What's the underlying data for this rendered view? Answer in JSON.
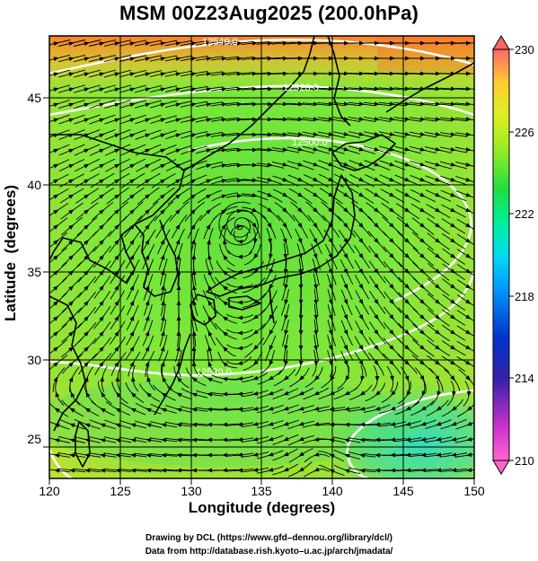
{
  "title": "MSM 00Z23Aug2025 (200.0hPa)",
  "axes": {
    "xlabel": "Longitude (degrees)",
    "ylabel": "Latitude  (degrees)",
    "xticks": [
      "120",
      "125",
      "130",
      "135",
      "140",
      "145",
      "150"
    ],
    "yticks": [
      "25",
      "30",
      "35",
      "40",
      "45"
    ],
    "xlim": [
      120,
      150
    ],
    "ylim": [
      22.4,
      47.6
    ]
  },
  "colorbar": {
    "ticks": [
      "230",
      "226",
      "222",
      "218",
      "214",
      "210"
    ],
    "range": [
      210,
      230
    ],
    "colors": [
      "#ff66cc",
      "#cc33cc",
      "#6633cc",
      "#0033cc",
      "#0099ff",
      "#00ddff",
      "#00ee99",
      "#22dd44",
      "#88ee22",
      "#ddee22",
      "#ffcc33",
      "#ff8844",
      "#ff6666"
    ]
  },
  "contours": [
    {
      "label": "12540.0"
    },
    {
      "label": "12520.0"
    },
    {
      "label": "12500.0"
    },
    {
      "label": "12530.0"
    }
  ],
  "credits": {
    "line1": "Drawing by DCL (https://www.gfd–dennou.org/library/dcl/)",
    "line2": "Data from http://database.rish.kyoto–u.ac.jp/arch/jmadata/"
  },
  "field": {
    "circulation_center": [
      133.5,
      36.8
    ],
    "background": "#7de83a",
    "warm_corner": "#ff6a2a",
    "cool_corner": "#33dd99"
  }
}
